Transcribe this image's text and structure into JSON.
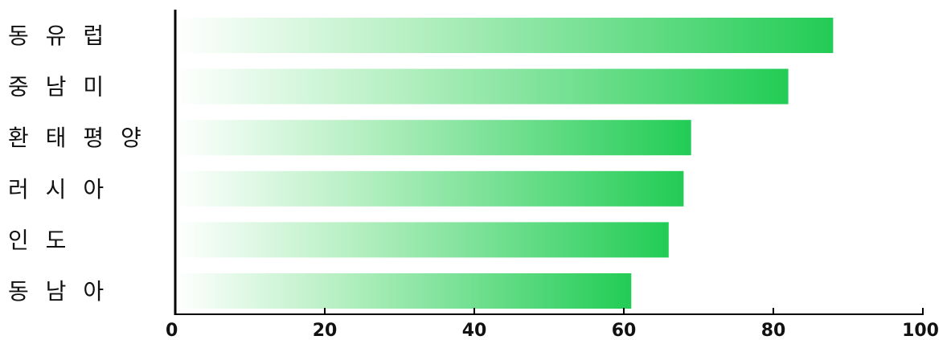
{
  "chart_data": {
    "type": "bar",
    "orientation": "horizontal",
    "categories": [
      "동 유 럽",
      "중 남 미",
      "환 태 평 양",
      "러 시 아",
      "인 도",
      "동 남 아"
    ],
    "values": [
      88,
      82,
      69,
      68,
      66,
      61
    ],
    "xlim": [
      0,
      100
    ],
    "xticks": [
      0,
      20,
      40,
      60,
      80,
      100
    ],
    "title": "",
    "xlabel": "",
    "ylabel": "",
    "grid": false,
    "legend": "none",
    "bar_color": "#22cc55",
    "bar_color_fade": "#ffffff"
  }
}
